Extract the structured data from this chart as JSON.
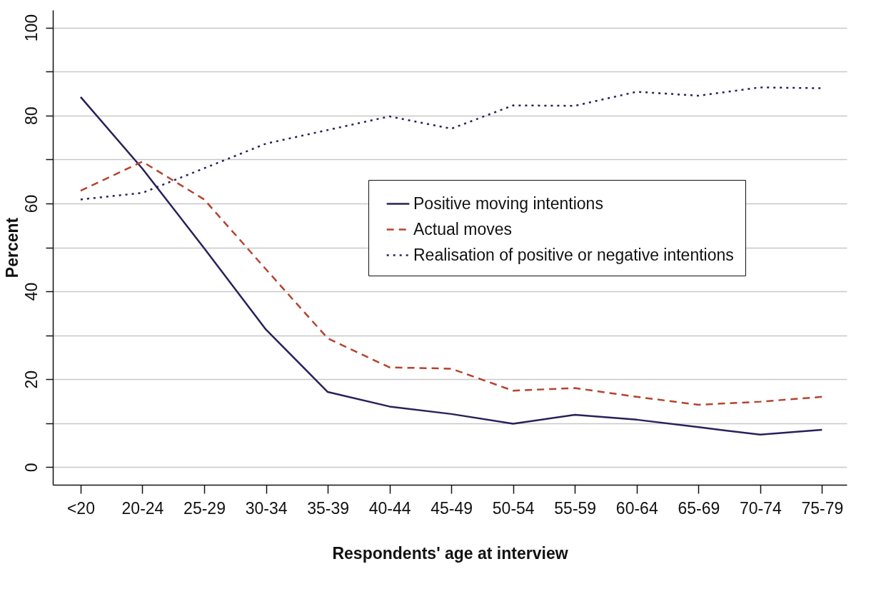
{
  "chart_data": {
    "type": "line",
    "xlabel": "Respondents' age at interview",
    "ylabel": "Percent",
    "categories": [
      "<20",
      "20-24",
      "25-29",
      "30-34",
      "35-39",
      "40-44",
      "45-49",
      "50-54",
      "55-59",
      "60-64",
      "65-69",
      "70-74",
      "75-79"
    ],
    "series": [
      {
        "name": "Positive moving intentions",
        "color": "#2a1f5a",
        "line_style": "solid",
        "values": [
          84.2,
          67.9,
          49.8,
          31.3,
          17.1,
          13.8,
          12.1,
          9.9,
          11.9,
          10.8,
          9.1,
          7.4,
          8.5
        ]
      },
      {
        "name": "Actual moves",
        "color": "#b5432e",
        "line_style": "dashed",
        "values": [
          62.9,
          69.5,
          60.9,
          45,
          29.3,
          22.7,
          22.4,
          17.4,
          18,
          16,
          14.2,
          14.9,
          16
        ]
      },
      {
        "name": "Realisation of positive or negative intentions",
        "color": "#2a1f5a",
        "line_style": "dotted",
        "values": [
          60.9,
          62.4,
          68,
          73.6,
          76.7,
          79.8,
          77,
          82.3,
          82.2,
          85.4,
          84.5,
          86.4,
          86.2
        ]
      }
    ],
    "ylim": [
      -4,
      104
    ],
    "yticks": [
      0,
      {
        "value": 10,
        "label": null
      },
      20,
      {
        "value": 30,
        "label": null
      },
      40,
      {
        "value": 50,
        "label": null
      },
      60,
      {
        "value": 70,
        "label": null
      },
      80,
      {
        "value": 90,
        "label": null
      },
      100
    ],
    "grid": true,
    "legend": "right"
  }
}
